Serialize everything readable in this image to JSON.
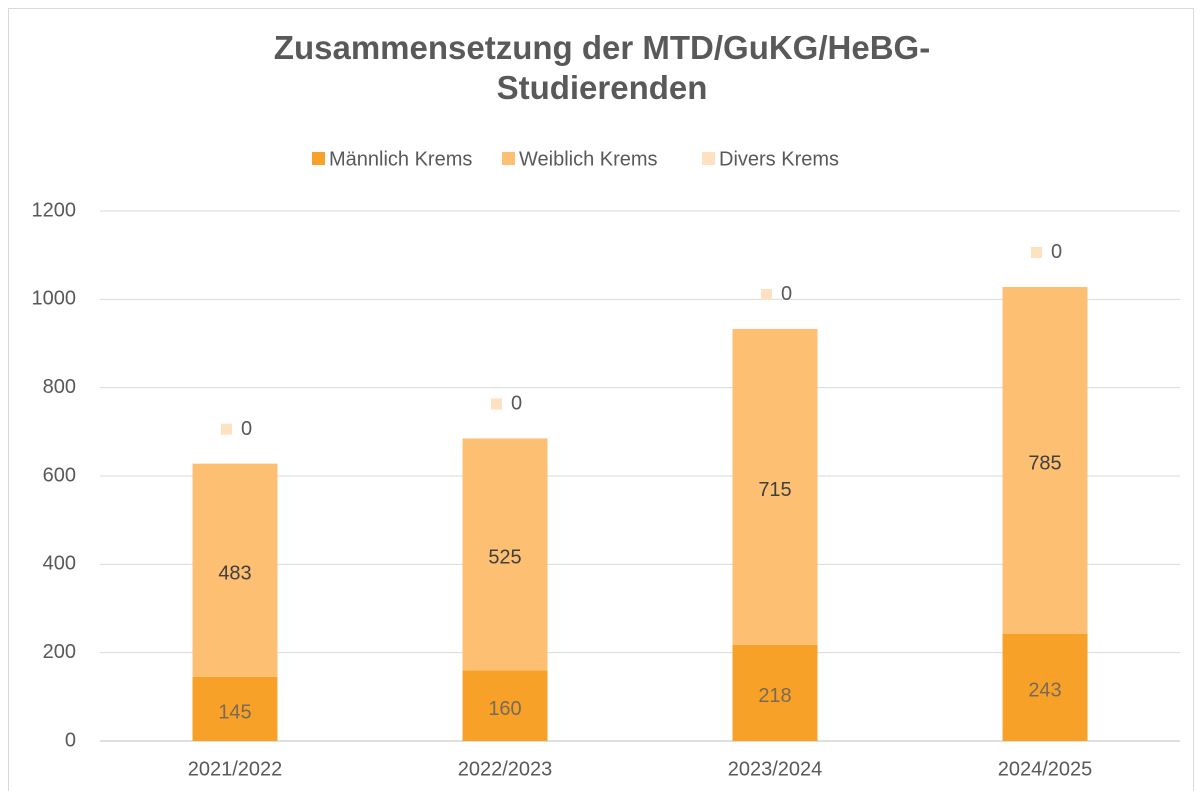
{
  "chart_data": {
    "type": "stacked_bar",
    "title": "Zusammensetzung der MTD/GuKG/HeBG-Studierenden",
    "categories": [
      "2021/2022",
      "2022/2023",
      "2023/2024",
      "2024/2025"
    ],
    "series": [
      {
        "name": "Männlich Krems",
        "color": "#f7a128",
        "values": [
          145,
          160,
          218,
          243
        ]
      },
      {
        "name": "Weiblich Krems",
        "color": "#fdbf72",
        "values": [
          483,
          525,
          715,
          785
        ]
      },
      {
        "name": "Divers Krems",
        "color": "#fde1c0",
        "values": [
          0,
          0,
          0,
          0
        ]
      }
    ],
    "ylim": [
      0,
      1200
    ],
    "yticks": [
      0,
      200,
      400,
      600,
      800,
      1000,
      1200
    ],
    "grid": true,
    "legend": "top"
  }
}
